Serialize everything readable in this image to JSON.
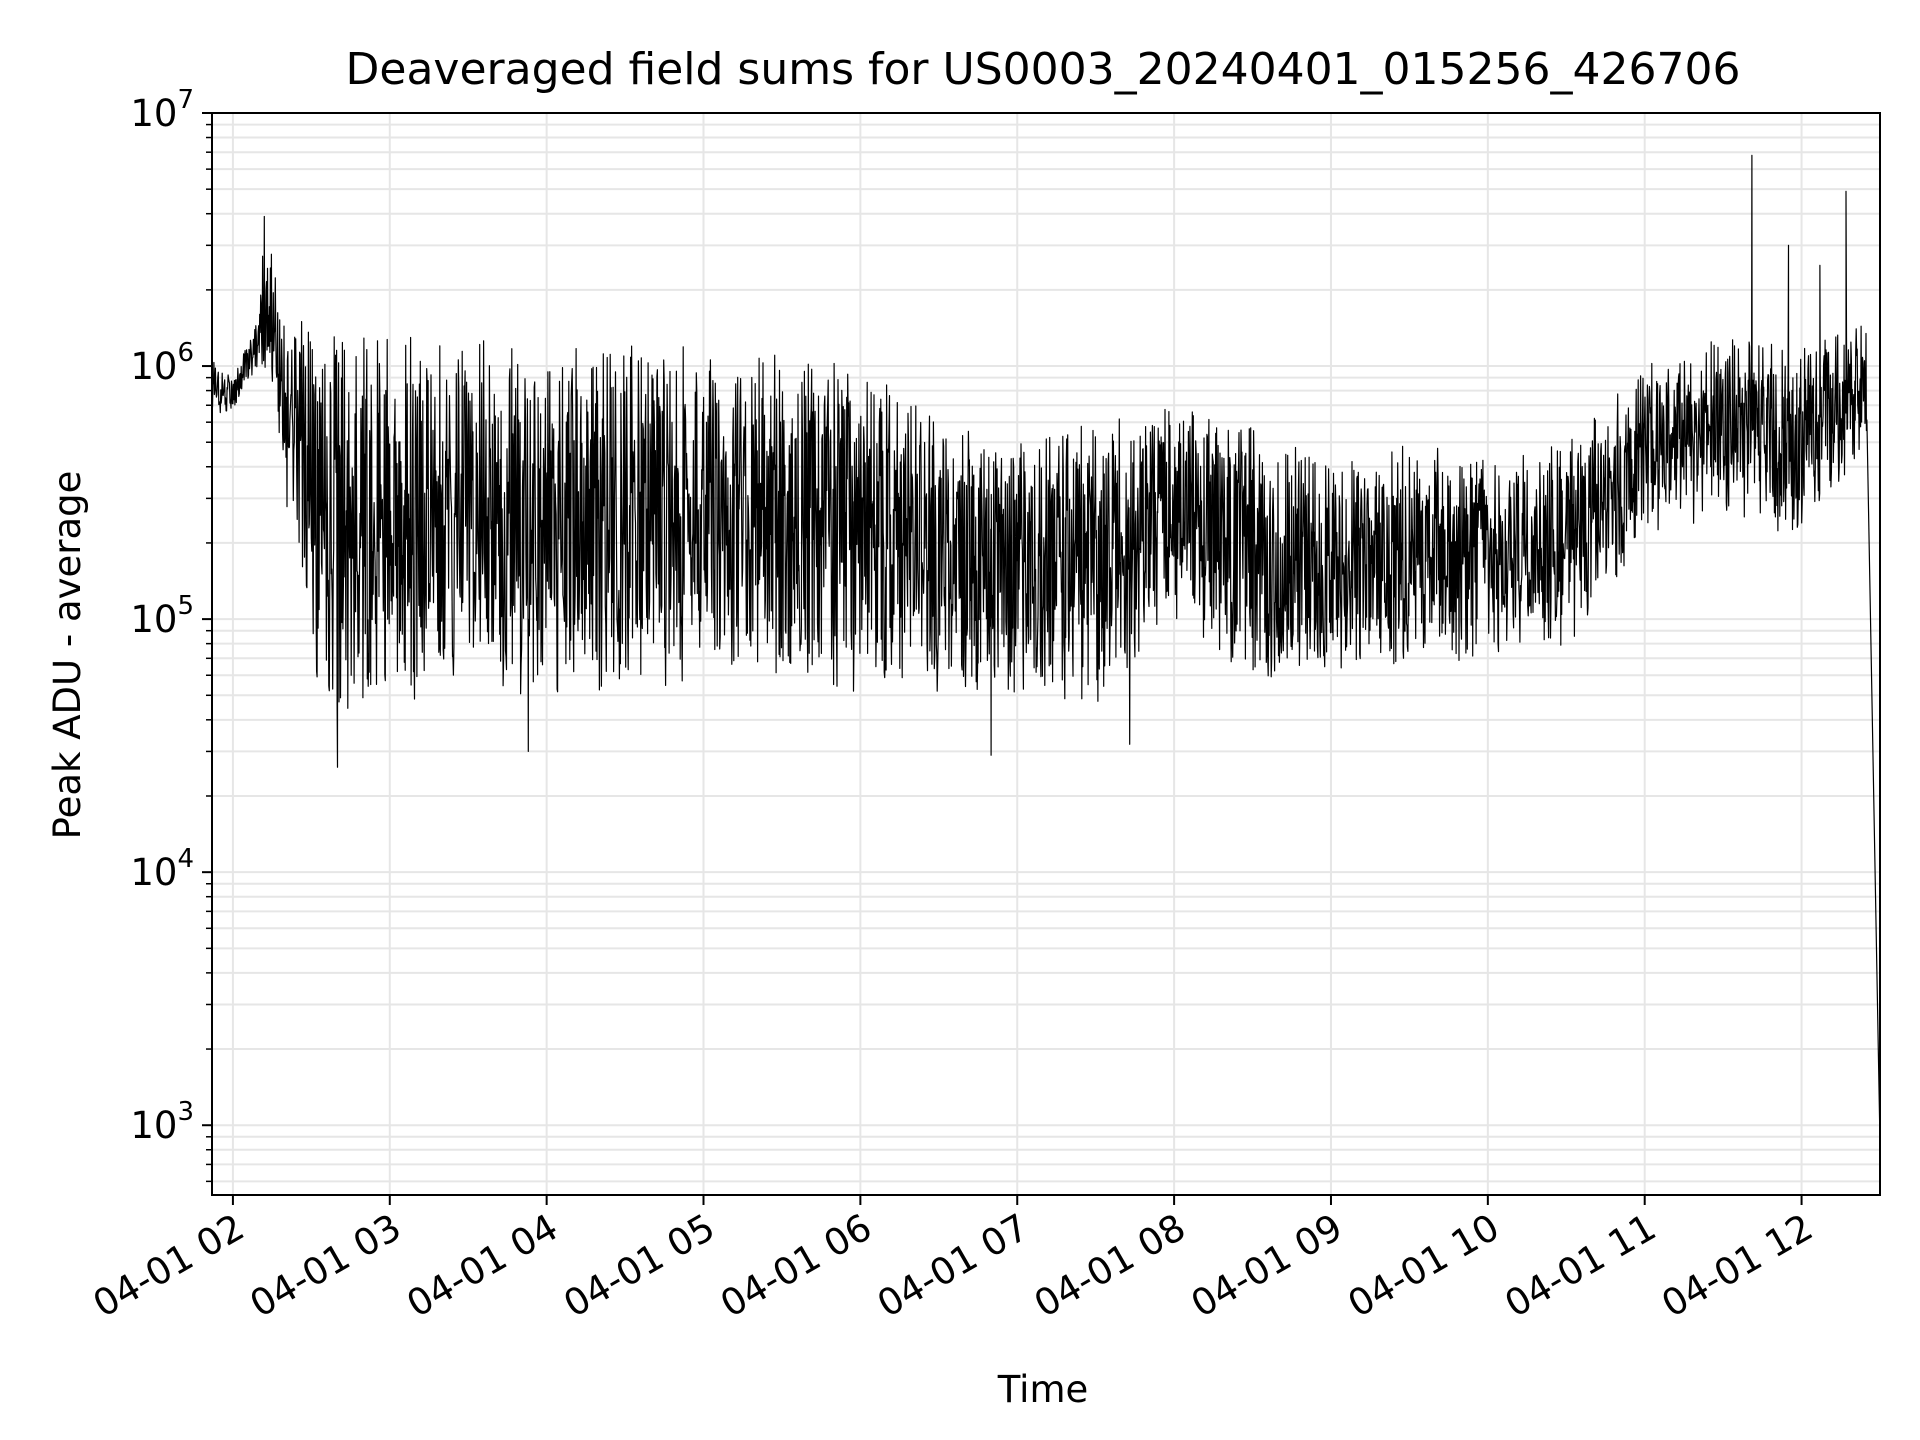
{
  "chart_data": {
    "type": "line",
    "title": "Deaveraged field sums for US0003_20240401_015256_426706",
    "xlabel": "Time",
    "ylabel": "Peak ADU - average",
    "yscale": "log",
    "ylim": [
      530,
      10000000
    ],
    "xlim": [
      "04-01 01:52",
      "04-01 12:30"
    ],
    "grid": true,
    "line_color": "#000000",
    "x_ticks": [
      "04-01 02",
      "04-01 03",
      "04-01 04",
      "04-01 05",
      "04-01 06",
      "04-01 07",
      "04-01 08",
      "04-01 09",
      "04-01 10",
      "04-01 11",
      "04-01 12"
    ],
    "y_ticks": [
      {
        "base": "10",
        "exp": "3",
        "value": 1000
      },
      {
        "base": "10",
        "exp": "4",
        "value": 10000
      },
      {
        "base": "10",
        "exp": "5",
        "value": 100000
      },
      {
        "base": "10",
        "exp": "6",
        "value": 1000000
      },
      {
        "base": "10",
        "exp": "7",
        "value": 10000000
      }
    ],
    "series": [
      {
        "upper_envelope": [
          [
            "04-01 01:52",
            1100000
          ],
          [
            "04-01 02:00",
            900000
          ],
          [
            "04-01 02:10",
            1600000
          ],
          [
            "04-01 02:12",
            3900000
          ],
          [
            "04-01 02:20",
            1500000
          ],
          [
            "04-01 02:30",
            1500000
          ],
          [
            "04-01 03:00",
            1300000
          ],
          [
            "04-01 03:30",
            1300000
          ],
          [
            "04-01 04:00",
            1200000
          ],
          [
            "04-01 04:30",
            1200000
          ],
          [
            "04-01 05:00",
            1200000
          ],
          [
            "04-01 05:30",
            1100000
          ],
          [
            "04-01 06:00",
            1000000
          ],
          [
            "04-01 06:30",
            600000
          ],
          [
            "04-01 07:00",
            500000
          ],
          [
            "04-01 07:30",
            600000
          ],
          [
            "04-01 08:00",
            700000
          ],
          [
            "04-01 08:30",
            600000
          ],
          [
            "04-01 09:00",
            400000
          ],
          [
            "04-01 09:30",
            500000
          ],
          [
            "04-01 10:00",
            450000
          ],
          [
            "04-01 10:30",
            500000
          ],
          [
            "04-01 11:00",
            1000000
          ],
          [
            "04-01 11:30",
            1300000
          ],
          [
            "04-01 12:00",
            1200000
          ],
          [
            "04-01 12:25",
            1500000
          ]
        ],
        "lower_envelope": [
          [
            "04-01 01:52",
            600000
          ],
          [
            "04-01 02:00",
            650000
          ],
          [
            "04-01 02:10",
            1000000
          ],
          [
            "04-01 02:15",
            800000
          ],
          [
            "04-01 02:20",
            300000
          ],
          [
            "04-01 02:30",
            60000
          ],
          [
            "04-01 02:40",
            35000
          ],
          [
            "04-01 03:00",
            45000
          ],
          [
            "04-01 03:30",
            50000
          ],
          [
            "04-01 04:00",
            50000
          ],
          [
            "04-01 04:30",
            50000
          ],
          [
            "04-01 05:00",
            55000
          ],
          [
            "04-01 05:30",
            55000
          ],
          [
            "04-01 06:00",
            50000
          ],
          [
            "04-01 06:30",
            50000
          ],
          [
            "04-01 07:00",
            50000
          ],
          [
            "04-01 07:30",
            45000
          ],
          [
            "04-01 08:00",
            100000
          ],
          [
            "04-01 08:30",
            55000
          ],
          [
            "04-01 09:00",
            60000
          ],
          [
            "04-01 09:30",
            60000
          ],
          [
            "04-01 10:00",
            70000
          ],
          [
            "04-01 10:30",
            70000
          ],
          [
            "04-01 11:00",
            200000
          ],
          [
            "04-01 11:30",
            250000
          ],
          [
            "04-01 12:00",
            200000
          ],
          [
            "04-01 12:25",
            500000
          ]
        ],
        "spikes": [
          [
            "04-01 02:12",
            3900000
          ],
          [
            "04-01 02:40",
            26000
          ],
          [
            "04-01 03:53",
            30000
          ],
          [
            "04-01 06:50",
            29000
          ],
          [
            "04-01 07:43",
            32000
          ],
          [
            "04-01 11:41",
            6800000
          ],
          [
            "04-01 11:55",
            3000000
          ],
          [
            "04-01 12:07",
            2500000
          ],
          [
            "04-01 12:17",
            4900000
          ],
          [
            "04-01 12:28",
            2300000
          ],
          [
            "04-01 12:30",
            850
          ]
        ]
      }
    ]
  }
}
